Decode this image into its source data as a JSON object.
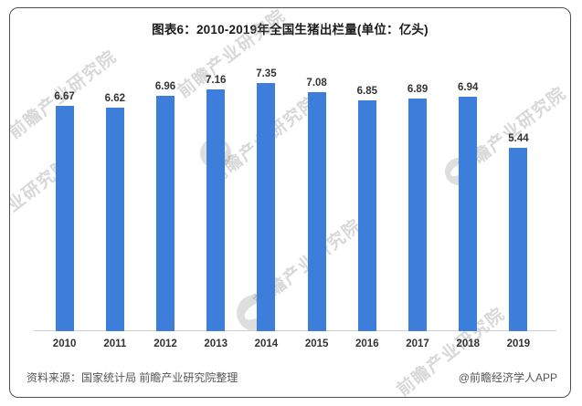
{
  "chart_data": {
    "type": "bar",
    "title": "图表6：2010-2019年全国生猪出栏量(单位：亿头)",
    "categories": [
      "2010",
      "2011",
      "2012",
      "2013",
      "2014",
      "2015",
      "2016",
      "2017",
      "2018",
      "2019"
    ],
    "values": [
      6.67,
      6.62,
      6.96,
      7.16,
      7.35,
      7.08,
      6.85,
      6.89,
      6.94,
      5.44
    ],
    "unit": "亿头",
    "bar_color": "#3D7EDA",
    "label_color": "#333333",
    "ylim": [
      0,
      7.9
    ],
    "grid": false,
    "legend": false,
    "value_labels_shown": true
  },
  "footer": {
    "source": "资料来源：国家统计局 前瞻产业研究院整理",
    "credit": "@前瞻经济学人APP"
  },
  "watermark": {
    "text": "前瞻产业研究院",
    "logo": "qianzhan-circle-logo"
  }
}
